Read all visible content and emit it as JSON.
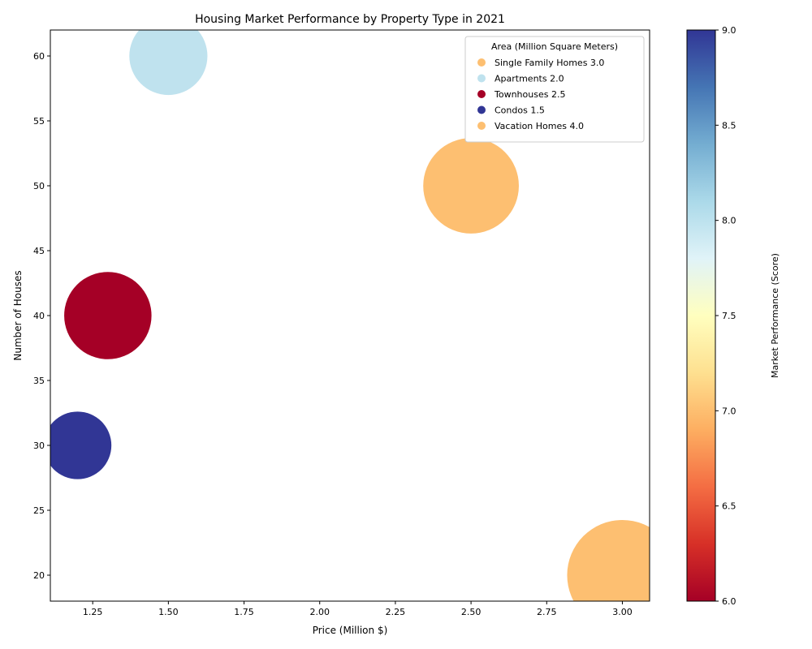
{
  "chart_data": {
    "type": "scatter",
    "title": "Housing Market Performance by Property Type in 2021",
    "xlabel": "Price (Million $)",
    "ylabel": "Number of Houses",
    "xlim": [
      1.11,
      3.09
    ],
    "ylim": [
      18,
      62
    ],
    "x_ticks": [
      1.25,
      1.5,
      1.75,
      2.0,
      2.25,
      2.5,
      2.75,
      3.0
    ],
    "x_tick_labels": [
      "1.25",
      "1.50",
      "1.75",
      "2.00",
      "2.25",
      "2.50",
      "2.75",
      "3.00"
    ],
    "y_ticks": [
      20,
      25,
      30,
      35,
      40,
      45,
      50,
      55,
      60
    ],
    "y_tick_labels": [
      "20",
      "25",
      "30",
      "35",
      "40",
      "45",
      "50",
      "55",
      "60"
    ],
    "grid": false,
    "legend": {
      "title": "Area (Million Square Meters)",
      "placement": "top-right"
    },
    "colorbar": {
      "label": "Market Performance (Score)",
      "range": [
        6.0,
        9.0
      ],
      "ticks": [
        "6.0",
        "6.5",
        "7.0",
        "7.5",
        "8.0",
        "8.5",
        "9.0"
      ],
      "colormap": "RdYlBu"
    },
    "points": [
      {
        "category": "Single Family Homes",
        "area": "3.0",
        "area_value": 3.0,
        "price": 2.5,
        "houses": 50,
        "performance": 7,
        "color": "#fdbf71",
        "legend_label": "Single Family Homes 3.0"
      },
      {
        "category": "Apartments",
        "area": "2.0",
        "area_value": 2.0,
        "price": 1.5,
        "houses": 60,
        "performance": 8,
        "color": "#bfe2ee",
        "legend_label": "Apartments 2.0"
      },
      {
        "category": "Townhouses",
        "area": "2.5",
        "area_value": 2.5,
        "price": 1.3,
        "houses": 40,
        "performance": 6,
        "color": "#a50026",
        "legend_label": "Townhouses 2.5"
      },
      {
        "category": "Condos",
        "area": "1.5",
        "area_value": 1.5,
        "price": 1.2,
        "houses": 30,
        "performance": 9,
        "color": "#313695",
        "legend_label": "Condos 1.5"
      },
      {
        "category": "Vacation Homes",
        "area": "4.0",
        "area_value": 4.0,
        "price": 3.0,
        "houses": 20,
        "performance": 7,
        "color": "#fdbf71",
        "legend_label": "Vacation Homes 4.0"
      }
    ]
  }
}
